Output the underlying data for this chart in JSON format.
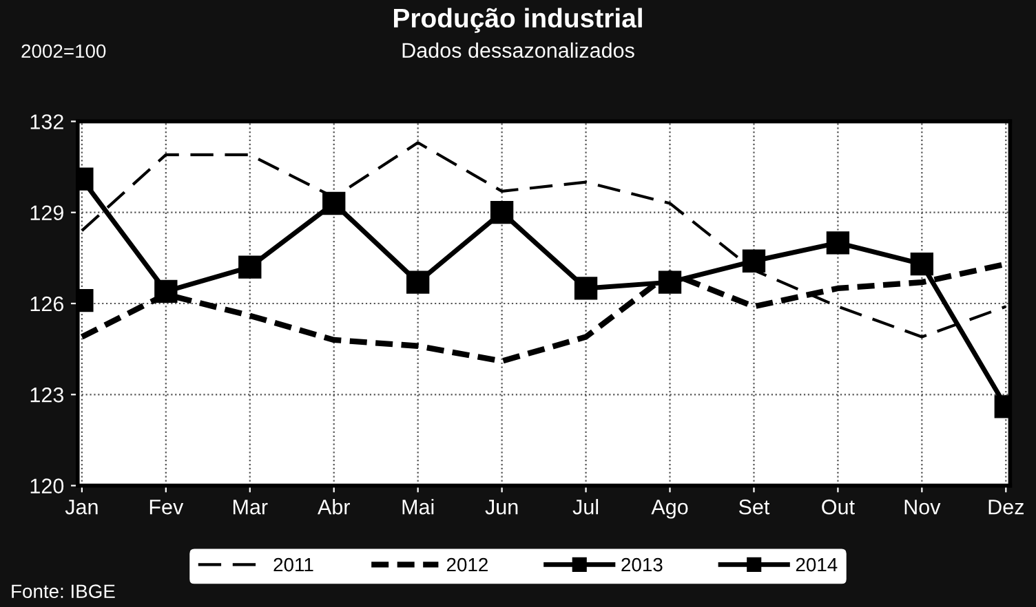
{
  "chart_data": {
    "type": "line",
    "title": "Produção industrial",
    "subtitle": "Dados dessazonalizados",
    "ylabel": "2002=100",
    "categories": [
      "Jan",
      "Fev",
      "Mar",
      "Abr",
      "Mai",
      "Jun",
      "Jul",
      "Ago",
      "Set",
      "Out",
      "Nov",
      "Dez"
    ],
    "ylim": [
      120,
      132
    ],
    "yticks": [
      120,
      123,
      126,
      129,
      132
    ],
    "grid": true,
    "legend": "bottom",
    "series": [
      {
        "name": "2011",
        "color": "#000000",
        "line_style": "dashed",
        "marker": "none",
        "values": [
          128.4,
          130.9,
          130.9,
          129.5,
          131.3,
          129.7,
          130.0,
          129.3,
          127.1,
          125.9,
          124.9,
          125.9
        ]
      },
      {
        "name": "2012",
        "color": "#000000",
        "line_style": "dotted",
        "marker": "none",
        "values": [
          124.9,
          126.3,
          125.6,
          124.8,
          124.6,
          124.1,
          124.9,
          127.0,
          125.9,
          126.5,
          126.7,
          127.3
        ]
      },
      {
        "name": "2013",
        "color": "#000000",
        "line_style": "solid",
        "marker": "square",
        "values": [
          130.1,
          126.4,
          127.2,
          129.3,
          126.7,
          129.0,
          126.5,
          126.7,
          127.4,
          128.0,
          127.3,
          122.6
        ]
      },
      {
        "name": "2014",
        "color": "#000000",
        "line_style": "solid",
        "marker": "square",
        "values": [
          126.1,
          null,
          null,
          null,
          null,
          null,
          null,
          null,
          null,
          null,
          null,
          null
        ]
      }
    ],
    "annotations": [
      "Fonte: IBGE"
    ]
  }
}
